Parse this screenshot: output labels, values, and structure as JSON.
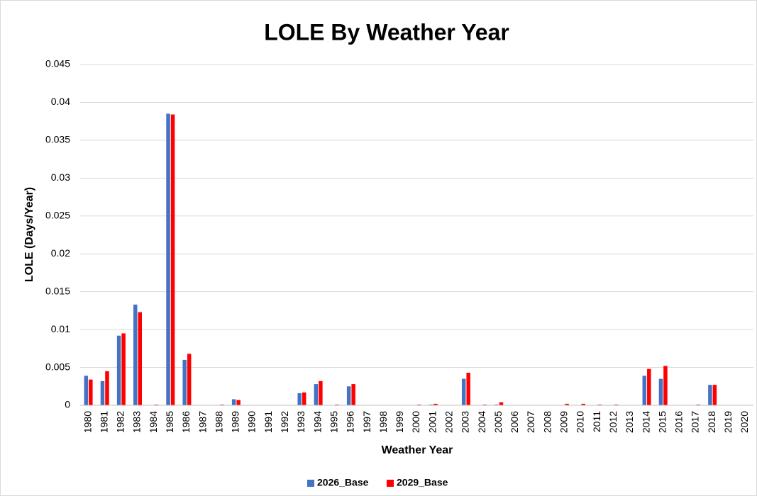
{
  "chart_data": {
    "type": "bar",
    "title": "LOLE By Weather Year",
    "x_label": "Weather Year",
    "y_label": "LOLE (Days/Year)",
    "categories": [
      "1980",
      "1981",
      "1982",
      "1983",
      "1984",
      "1985",
      "1986",
      "1987",
      "1988",
      "1989",
      "1990",
      "1991",
      "1992",
      "1993",
      "1994",
      "1995",
      "1996",
      "1997",
      "1998",
      "1999",
      "2000",
      "2001",
      "2002",
      "2003",
      "2004",
      "2005",
      "2006",
      "2007",
      "2008",
      "2009",
      "2010",
      "2011",
      "2012",
      "2013",
      "2014",
      "2015",
      "2016",
      "2017",
      "2018",
      "2019",
      "2020"
    ],
    "series": [
      {
        "name": "2026_Base",
        "color": "#4472c4",
        "values": [
          0.0039,
          0.0032,
          0.0092,
          0.0133,
          0,
          0.0385,
          0.006,
          0,
          0,
          0.0008,
          0,
          0,
          0,
          0.0016,
          0.0028,
          0,
          0.0025,
          0,
          0,
          0,
          0,
          0.0001,
          0,
          0.0035,
          0,
          0.0001,
          0,
          0,
          0,
          0,
          0,
          0,
          0,
          0,
          0.0039,
          0.0035,
          0,
          0,
          0.0027,
          0,
          0
        ]
      },
      {
        "name": "2029_Base",
        "color": "#ff0000",
        "values": [
          0.0034,
          0.0045,
          0.0095,
          0.0123,
          0.0001,
          0.0384,
          0.0068,
          0,
          0.0001,
          0.0007,
          0,
          0,
          0,
          0.0017,
          0.0032,
          0.0001,
          0.0028,
          0,
          0,
          0,
          0.0001,
          0.0002,
          0,
          0.0043,
          0.0001,
          0.0004,
          0,
          0,
          0,
          0.0002,
          0.0002,
          0.0001,
          0.0001,
          0,
          0.0048,
          0.0052,
          0,
          0.0001,
          0.0027,
          0,
          0
        ]
      }
    ],
    "ylim": [
      0,
      0.045
    ],
    "yticks": [
      0,
      0.005,
      0.01,
      0.015,
      0.02,
      0.025,
      0.03,
      0.035,
      0.04,
      0.045
    ],
    "grid": true,
    "legend": "bottom"
  }
}
